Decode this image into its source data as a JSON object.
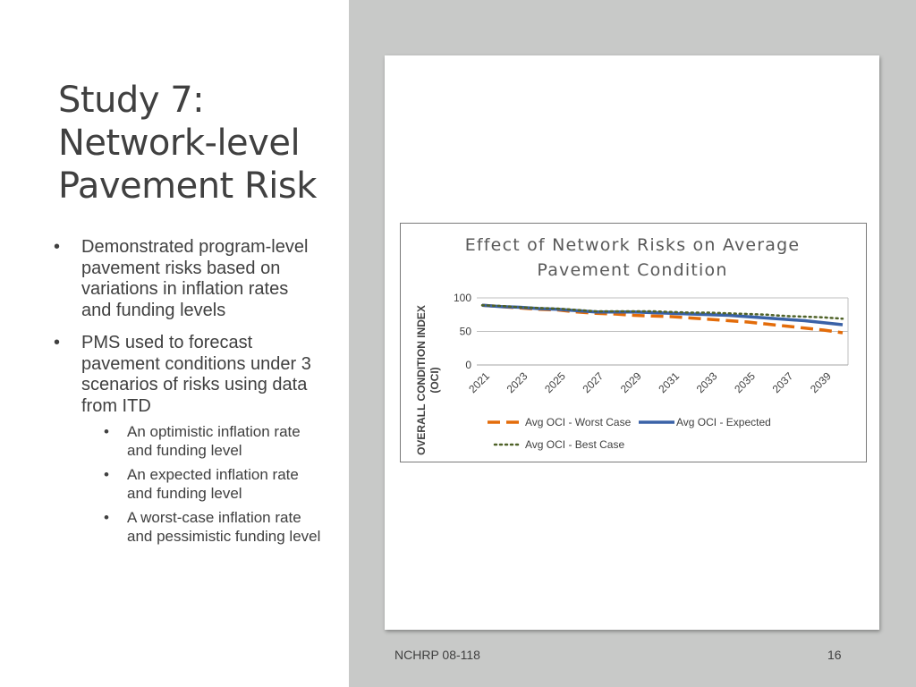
{
  "slide": {
    "title_lines": [
      "Study 7:",
      "Network-level",
      "Pavement Risk"
    ],
    "bullets": [
      {
        "text": "Demonstrated program-level pavement risks based on variations in inflation rates and funding levels",
        "sub": []
      },
      {
        "text": "PMS used to forecast pavement conditions under 3 scenarios of risks using data from ITD",
        "sub": [
          "An optimistic inflation rate and funding level",
          "An expected inflation rate and funding level",
          "A worst-case inflation rate and pessimistic funding level"
        ]
      }
    ]
  },
  "footer": {
    "left": "NCHRP 08-118",
    "right": "16"
  },
  "colors": {
    "worst": "#e36c0a",
    "expected": "#3a62a7",
    "best": "#4f6228",
    "right_background": "#c8c9c8",
    "gridline": "#bfbfbf"
  },
  "chart_data": {
    "type": "line",
    "title_lines": [
      "Effect of Network Risks on Average",
      "Pavement Condition"
    ],
    "ylabel_lines": [
      "OVERALL CONDITION INDEX",
      "(OCI)"
    ],
    "xlabel": "",
    "x": [
      "2021",
      "2022",
      "2023",
      "2024",
      "2025",
      "2026",
      "2027",
      "2028",
      "2029",
      "2030",
      "2031",
      "2032",
      "2033",
      "2034",
      "2035",
      "2036",
      "2037",
      "2038",
      "2039",
      "2040"
    ],
    "x_tick_labels": [
      "2021",
      "2023",
      "2025",
      "2027",
      "2029",
      "2031",
      "2033",
      "2035",
      "2037",
      "2039"
    ],
    "y_ticks": [
      0,
      50,
      100
    ],
    "ylim": [
      0,
      100
    ],
    "grid": true,
    "legend_position": "bottom",
    "series": [
      {
        "name": "Avg OCI - Worst Case",
        "style": "dashed",
        "color": "#e36c0a",
        "values": [
          89,
          87,
          85,
          83,
          82,
          79,
          77,
          76,
          74,
          73,
          72,
          70,
          68,
          66,
          64,
          61,
          58,
          55,
          52,
          48
        ]
      },
      {
        "name": "Avg OCI - Expected",
        "style": "solid",
        "color": "#3a62a7",
        "values": [
          89,
          87,
          86,
          84,
          83,
          81,
          79,
          79,
          79,
          78,
          77,
          76,
          75,
          74,
          72,
          70,
          68,
          66,
          63,
          60
        ]
      },
      {
        "name": "Avg OCI - Best Case",
        "style": "dotted",
        "color": "#4f6228",
        "values": [
          89,
          88,
          86,
          85,
          84,
          82,
          80,
          80,
          80,
          80,
          79,
          78,
          78,
          77,
          76,
          75,
          73,
          72,
          71,
          69
        ]
      }
    ]
  }
}
